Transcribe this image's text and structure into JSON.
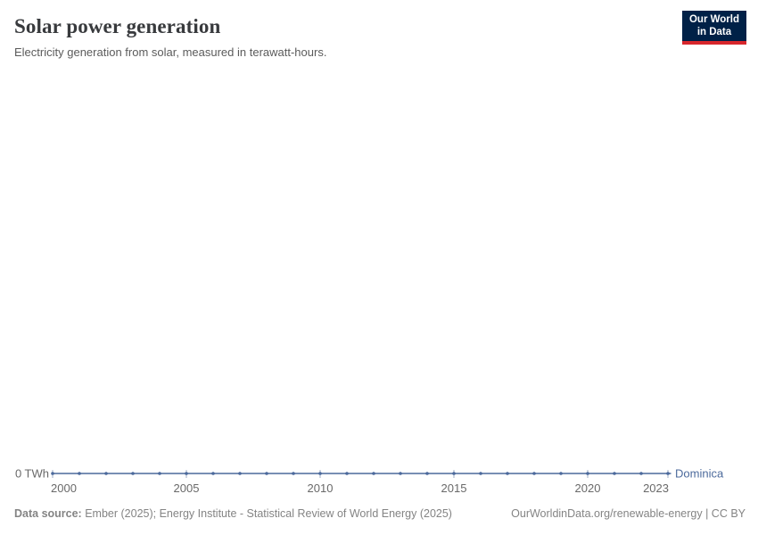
{
  "header": {
    "title": "Solar power generation",
    "subtitle": "Electricity generation from solar, measured in terawatt-hours."
  },
  "logo": {
    "line1": "Our World",
    "line2": "in Data"
  },
  "chart_data": {
    "type": "line",
    "title": "Solar power generation",
    "ylabel": "terawatt-hours",
    "y_zero_label": "0 TWh",
    "x": [
      2000,
      2001,
      2002,
      2003,
      2004,
      2005,
      2006,
      2007,
      2008,
      2009,
      2010,
      2011,
      2012,
      2013,
      2014,
      2015,
      2016,
      2017,
      2018,
      2019,
      2020,
      2021,
      2022,
      2023
    ],
    "xticks": [
      2000,
      2005,
      2010,
      2015,
      2020,
      2023
    ],
    "series": [
      {
        "name": "Dominica",
        "color": "#4c6a9c",
        "values": [
          0,
          0,
          0,
          0,
          0,
          0,
          0,
          0,
          0,
          0,
          0,
          0,
          0,
          0,
          0,
          0,
          0,
          0,
          0,
          0,
          0,
          0,
          0,
          0
        ]
      }
    ],
    "ylim": [
      0,
      0
    ],
    "grid": false,
    "legend": "end-of-line-label",
    "marker": "dot"
  },
  "axis": {
    "zero_label": "0 TWh"
  },
  "series_label": "Dominica",
  "footer": {
    "datasource_label": "Data source:",
    "datasource_text": " Ember (2025); Energy Institute - Statistical Review of World Energy (2025)",
    "rights": "OurWorldinData.org/renewable-energy | CC BY"
  },
  "colors": {
    "series": "#4c6a9c",
    "tick": "#9fadc4",
    "logo_bg": "#002147",
    "logo_red": "#d7262c"
  }
}
